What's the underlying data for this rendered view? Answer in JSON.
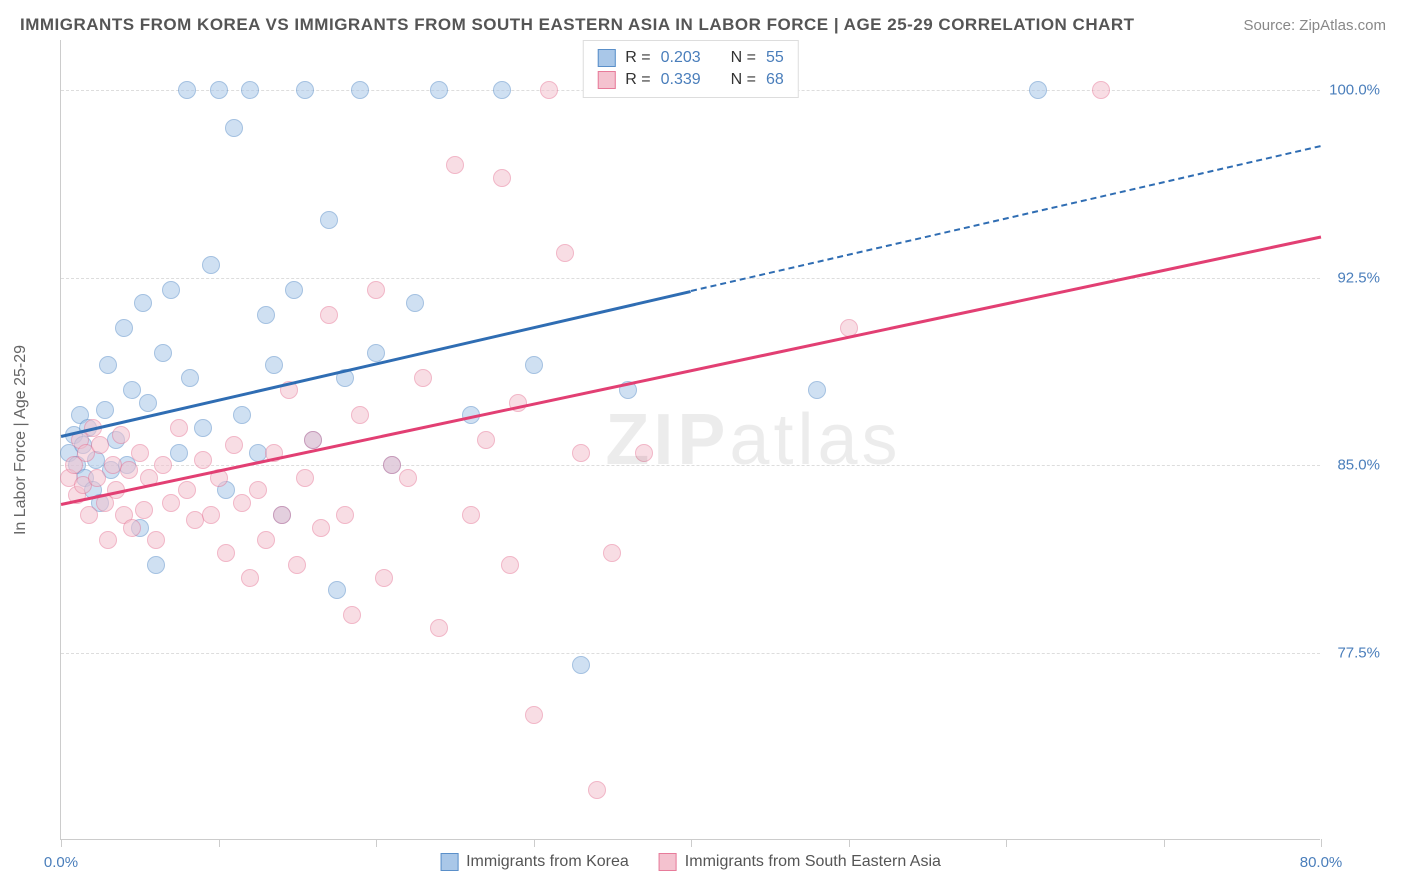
{
  "header": {
    "title": "IMMIGRANTS FROM KOREA VS IMMIGRANTS FROM SOUTH EASTERN ASIA IN LABOR FORCE | AGE 25-29 CORRELATION CHART",
    "source": "Source: ZipAtlas.com"
  },
  "chart": {
    "type": "scatter",
    "y_axis_label": "In Labor Force | Age 25-29",
    "xlim": [
      0,
      80
    ],
    "ylim": [
      70,
      102
    ],
    "x_ticks": [
      0,
      10,
      20,
      30,
      40,
      50,
      60,
      70,
      80
    ],
    "x_tick_labels": {
      "0": "0.0%",
      "80": "80.0%"
    },
    "y_ticks": [
      77.5,
      85.0,
      92.5,
      100.0
    ],
    "y_tick_labels": [
      "77.5%",
      "85.0%",
      "92.5%",
      "100.0%"
    ],
    "grid_color": "#dddddd",
    "axis_color": "#cccccc",
    "tick_label_color": "#4a7ebb",
    "background_color": "#ffffff",
    "watermark": "ZIPatlas",
    "marker_radius": 9,
    "marker_opacity": 0.55,
    "series": [
      {
        "name": "Immigrants from Korea",
        "fill_color": "#a9c7e8",
        "stroke_color": "#5a8fc9",
        "line_color": "#2f6db3",
        "R": "0.203",
        "N": "55",
        "trend": {
          "x1": 0,
          "y1": 86.2,
          "x2": 40,
          "y2": 92.0,
          "x2_dash": 80,
          "y2_dash": 97.8
        },
        "points": [
          [
            0.5,
            85.5
          ],
          [
            0.8,
            86.2
          ],
          [
            1.0,
            85.0
          ],
          [
            1.2,
            87.0
          ],
          [
            1.4,
            85.8
          ],
          [
            1.5,
            84.5
          ],
          [
            1.7,
            86.5
          ],
          [
            2.0,
            84.0
          ],
          [
            2.2,
            85.2
          ],
          [
            2.5,
            83.5
          ],
          [
            2.8,
            87.2
          ],
          [
            3.0,
            89.0
          ],
          [
            3.2,
            84.8
          ],
          [
            3.5,
            86.0
          ],
          [
            4.0,
            90.5
          ],
          [
            4.2,
            85.0
          ],
          [
            4.5,
            88.0
          ],
          [
            5.0,
            82.5
          ],
          [
            5.2,
            91.5
          ],
          [
            5.5,
            87.5
          ],
          [
            6.0,
            81.0
          ],
          [
            6.5,
            89.5
          ],
          [
            7.0,
            92.0
          ],
          [
            7.5,
            85.5
          ],
          [
            8.0,
            100.0
          ],
          [
            8.2,
            88.5
          ],
          [
            9.0,
            86.5
          ],
          [
            9.5,
            93.0
          ],
          [
            10.0,
            100.0
          ],
          [
            10.5,
            84.0
          ],
          [
            11.0,
            98.5
          ],
          [
            11.5,
            87.0
          ],
          [
            12.0,
            100.0
          ],
          [
            12.5,
            85.5
          ],
          [
            13.0,
            91.0
          ],
          [
            13.5,
            89.0
          ],
          [
            14.0,
            83.0
          ],
          [
            14.8,
            92.0
          ],
          [
            15.5,
            100.0
          ],
          [
            16.0,
            86.0
          ],
          [
            17.0,
            94.8
          ],
          [
            17.5,
            80.0
          ],
          [
            18.0,
            88.5
          ],
          [
            19.0,
            100.0
          ],
          [
            20.0,
            89.5
          ],
          [
            21.0,
            85.0
          ],
          [
            22.5,
            91.5
          ],
          [
            24.0,
            100.0
          ],
          [
            26.0,
            87.0
          ],
          [
            28.0,
            100.0
          ],
          [
            30.0,
            89.0
          ],
          [
            33.0,
            77.0
          ],
          [
            36.0,
            88.0
          ],
          [
            48.0,
            88.0
          ],
          [
            62.0,
            100.0
          ]
        ]
      },
      {
        "name": "Immigrants from South Eastern Asia",
        "fill_color": "#f4c2cf",
        "stroke_color": "#e77b9a",
        "line_color": "#e23f73",
        "R": "0.339",
        "N": "68",
        "trend": {
          "x1": 0,
          "y1": 83.5,
          "x2": 80,
          "y2": 94.2,
          "x2_dash": 80,
          "y2_dash": 94.2
        },
        "points": [
          [
            0.5,
            84.5
          ],
          [
            0.8,
            85.0
          ],
          [
            1.0,
            83.8
          ],
          [
            1.2,
            86.0
          ],
          [
            1.4,
            84.2
          ],
          [
            1.6,
            85.5
          ],
          [
            1.8,
            83.0
          ],
          [
            2.0,
            86.5
          ],
          [
            2.3,
            84.5
          ],
          [
            2.5,
            85.8
          ],
          [
            2.8,
            83.5
          ],
          [
            3.0,
            82.0
          ],
          [
            3.3,
            85.0
          ],
          [
            3.5,
            84.0
          ],
          [
            3.8,
            86.2
          ],
          [
            4.0,
            83.0
          ],
          [
            4.3,
            84.8
          ],
          [
            4.5,
            82.5
          ],
          [
            5.0,
            85.5
          ],
          [
            5.3,
            83.2
          ],
          [
            5.6,
            84.5
          ],
          [
            6.0,
            82.0
          ],
          [
            6.5,
            85.0
          ],
          [
            7.0,
            83.5
          ],
          [
            7.5,
            86.5
          ],
          [
            8.0,
            84.0
          ],
          [
            8.5,
            82.8
          ],
          [
            9.0,
            85.2
          ],
          [
            9.5,
            83.0
          ],
          [
            10.0,
            84.5
          ],
          [
            10.5,
            81.5
          ],
          [
            11.0,
            85.8
          ],
          [
            11.5,
            83.5
          ],
          [
            12.0,
            80.5
          ],
          [
            12.5,
            84.0
          ],
          [
            13.0,
            82.0
          ],
          [
            13.5,
            85.5
          ],
          [
            14.0,
            83.0
          ],
          [
            14.5,
            88.0
          ],
          [
            15.0,
            81.0
          ],
          [
            15.5,
            84.5
          ],
          [
            16.0,
            86.0
          ],
          [
            16.5,
            82.5
          ],
          [
            17.0,
            91.0
          ],
          [
            18.0,
            83.0
          ],
          [
            18.5,
            79.0
          ],
          [
            19.0,
            87.0
          ],
          [
            20.0,
            92.0
          ],
          [
            20.5,
            80.5
          ],
          [
            21.0,
            85.0
          ],
          [
            22.0,
            84.5
          ],
          [
            23.0,
            88.5
          ],
          [
            24.0,
            78.5
          ],
          [
            25.0,
            97.0
          ],
          [
            26.0,
            83.0
          ],
          [
            27.0,
            86.0
          ],
          [
            28.0,
            96.5
          ],
          [
            28.5,
            81.0
          ],
          [
            29.0,
            87.5
          ],
          [
            30.0,
            75.0
          ],
          [
            31.0,
            100.0
          ],
          [
            32.0,
            93.5
          ],
          [
            33.0,
            85.5
          ],
          [
            34.0,
            72.0
          ],
          [
            35.0,
            81.5
          ],
          [
            37.0,
            85.5
          ],
          [
            50.0,
            90.5
          ],
          [
            66.0,
            100.0
          ]
        ]
      }
    ],
    "legend_bottom": [
      {
        "label": "Immigrants from Korea",
        "fill": "#a9c7e8",
        "stroke": "#5a8fc9"
      },
      {
        "label": "Immigrants from South Eastern Asia",
        "fill": "#f4c2cf",
        "stroke": "#e77b9a"
      }
    ]
  }
}
